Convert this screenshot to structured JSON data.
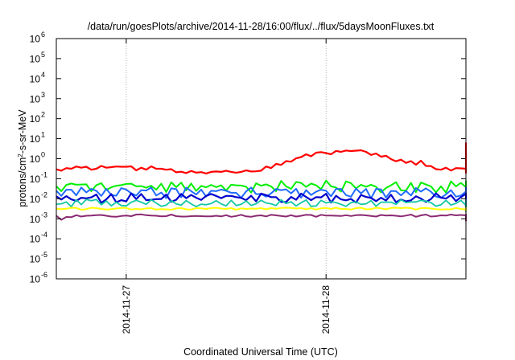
{
  "chart_data": {
    "type": "line",
    "title": "/data/run/goesPlots/archive/2014-11-28/16:00/flux/../flux/5daysMoonFluxes.txt",
    "xlabel": "Coordinated Universal Time (UTC)",
    "ylabel_parts": {
      "pre": "protons/cm",
      "sup": "2",
      "post": "-s-sr-MeV"
    },
    "scale_y": "log",
    "grid": true,
    "legend": "none",
    "ylim": [
      -6,
      6
    ],
    "y_ticks": [
      {
        "exp": -6,
        "base": "10",
        "power": "-6"
      },
      {
        "exp": -5,
        "base": "10",
        "power": "-5"
      },
      {
        "exp": -4,
        "base": "10",
        "power": "-4"
      },
      {
        "exp": -3,
        "base": "10",
        "power": "-3"
      },
      {
        "exp": -2,
        "base": "10",
        "power": "-2"
      },
      {
        "exp": -1,
        "base": "10",
        "power": "-1"
      },
      {
        "exp": 0,
        "base": "10",
        "power": "0"
      },
      {
        "exp": 1,
        "base": "10",
        "power": "1"
      },
      {
        "exp": 2,
        "base": "10",
        "power": "2"
      },
      {
        "exp": 3,
        "base": "10",
        "power": "3"
      },
      {
        "exp": 4,
        "base": "10",
        "power": "4"
      },
      {
        "exp": 5,
        "base": "10",
        "power": "5"
      },
      {
        "exp": 6,
        "base": "10",
        "power": "6"
      }
    ],
    "xlim": [
      -0.35,
      1.7
    ],
    "x_ticks": [
      {
        "value": 0,
        "label": "2014-11-27"
      },
      {
        "value": 1,
        "label": "2014-11-28"
      }
    ],
    "x_step": 0.025,
    "series": [
      {
        "color": "#ff0000",
        "stroke_width": 2.2,
        "log10_values": [
          -0.53,
          -0.6,
          -0.47,
          -0.5,
          -0.39,
          -0.45,
          -0.4,
          -0.55,
          -0.5,
          -0.36,
          -0.45,
          -0.42,
          -0.39,
          -0.4,
          -0.4,
          -0.38,
          -0.58,
          -0.45,
          -0.55,
          -0.38,
          -0.5,
          -0.5,
          -0.55,
          -0.52,
          -0.68,
          -0.65,
          -0.72,
          -0.61,
          -0.7,
          -0.67,
          -0.74,
          -0.66,
          -0.64,
          -0.66,
          -0.6,
          -0.66,
          -0.7,
          -0.66,
          -0.58,
          -0.64,
          -0.63,
          -0.6,
          -0.39,
          -0.47,
          -0.26,
          -0.31,
          -0.12,
          -0.15,
          0.02,
          0.08,
          0.22,
          0.12,
          0.3,
          0.33,
          0.28,
          0.22,
          0.39,
          0.34,
          0.41,
          0.38,
          0.4,
          0.42,
          0.34,
          0.19,
          0.26,
          0.1,
          0.15,
          -0.02,
          -0.13,
          -0.05,
          -0.21,
          -0.12,
          -0.3,
          -0.1,
          -0.36,
          -0.37,
          -0.52,
          -0.55,
          -0.45,
          -0.59,
          -0.47,
          -0.48,
          -0.5,
          -0.6,
          -0.46,
          -0.57,
          -0.56,
          -0.49,
          -0.51,
          -0.61,
          -0.64,
          -0.67,
          -0.52,
          -0.7,
          -0.63,
          -0.61,
          -0.55,
          -0.59,
          -0.5,
          -0.57,
          -0.49,
          -0.4,
          -0.48,
          -0.41,
          -0.4,
          -0.32,
          -0.38,
          -0.37,
          -0.22,
          -0.18,
          -0.24,
          -0.23,
          -0.06,
          -0.03,
          -0.05,
          -0.02,
          0.15,
          0.3,
          0.2,
          0.24,
          0.15,
          0.2,
          0.36,
          0.32,
          0.04,
          0.19,
          0.13,
          0.6,
          0.65,
          0.58,
          0.78,
          0.63,
          0.73,
          0.76,
          0.75
        ]
      },
      {
        "color": "#00ee00",
        "stroke_width": 2.0,
        "log10_values": [
          -1.38,
          -1.62,
          -1.31,
          -1.24,
          -1.3,
          -1.29,
          -1.28,
          -1.62,
          -1.32,
          -1.22,
          -1.56,
          -1.43,
          -1.35,
          -1.32,
          -1.26,
          -1.25,
          -1.38,
          -1.37,
          -1.45,
          -1.35,
          -1.55,
          -1.25,
          -1.66,
          -1.18,
          -1.42,
          -1.19,
          -1.58,
          -1.24,
          -1.61,
          -1.36,
          -1.43,
          -1.31,
          -1.42,
          -1.33,
          -1.59,
          -1.3,
          -1.33,
          -1.34,
          -1.4,
          -1.69,
          -1.23,
          -1.35,
          -1.28,
          -1.38,
          -1.62,
          -1.11,
          -1.38,
          -1.51,
          -1.16,
          -1.21,
          -1.41,
          -1.24,
          -1.33,
          -1.52,
          -1.09,
          -1.38,
          -1.44,
          -1.64,
          -1.13,
          -1.22,
          -1.48,
          -1.3,
          -1.4,
          -1.3,
          -1.4,
          -1.68,
          -1.46,
          -1.33,
          -1.17,
          -1.58,
          -1.59,
          -1.21,
          -1.67,
          -1.19,
          -1.29,
          -1.38,
          -1.68,
          -1.38,
          -1.69,
          -1.13,
          -1.38,
          -1.21,
          -1.42,
          -1.64,
          -1.29,
          -1.33,
          -1.2,
          -1.28,
          -1.56,
          -1.34,
          -1.42,
          -1.36,
          -1.3,
          -1.66,
          -1.31,
          -1.4,
          -1.34,
          -1.26,
          -1.23,
          -1.48,
          -1.51,
          -1.24,
          -1.65,
          -1.29,
          -1.46,
          -1.29,
          -1.3,
          -1.45,
          -1.18,
          -1.64,
          -1.15,
          -1.42,
          -1.55,
          -1.25,
          -1.21,
          -1.25,
          -1.64,
          -1.35,
          -1.49,
          -1.11,
          -1.44,
          -1.49,
          -1.32,
          -1.47,
          -1.32,
          -1.6,
          -2.1,
          -1.68,
          -1.27,
          -1.69,
          -1.4,
          -1.24,
          -1.36,
          -1.43,
          -1.28
        ]
      },
      {
        "color": "#1f6bff",
        "stroke_width": 2.0,
        "log10_values": [
          -1.6,
          -1.86,
          -1.55,
          -1.55,
          -1.83,
          -1.44,
          -1.68,
          -1.51,
          -1.6,
          -1.86,
          -1.51,
          -1.81,
          -1.85,
          -1.47,
          -1.54,
          -1.73,
          -1.84,
          -1.57,
          -1.59,
          -1.44,
          -1.84,
          -1.69,
          -1.97,
          -1.48,
          -1.52,
          -1.93,
          -1.44,
          -1.62,
          -1.79,
          -1.54,
          -1.89,
          -1.6,
          -1.62,
          -1.54,
          -1.6,
          -1.7,
          -1.7,
          -1.95,
          -1.63,
          -1.44,
          -1.77,
          -1.76,
          -1.9,
          -1.73,
          -1.51,
          -1.57,
          -1.53,
          -1.73,
          -1.5,
          -1.95,
          -1.57,
          -1.81,
          -1.65,
          -1.55,
          -1.6,
          -1.88,
          -1.51,
          -1.51,
          -1.82,
          -1.9,
          -1.49,
          -1.73,
          -1.51,
          -1.98,
          -1.51,
          -1.53,
          -1.94,
          -1.61,
          -1.62,
          -1.83,
          -1.61,
          -1.84,
          -1.46,
          -1.64,
          -1.48,
          -1.65,
          -1.89,
          -1.95,
          -1.78,
          -1.57,
          -1.9,
          -1.84,
          -1.64,
          -1.61,
          -1.74,
          -1.83,
          -1.71,
          -1.86,
          -1.74,
          -1.61,
          -1.77,
          -1.53,
          -1.81,
          -1.52,
          -1.66,
          -1.59,
          -1.78,
          -1.51,
          -1.89,
          -1.58,
          -1.79,
          -1.87,
          -1.69,
          -1.5,
          -1.81,
          -1.78,
          -1.86,
          -1.83,
          -1.42,
          -1.64,
          -1.59,
          -1.47,
          -1.76,
          -1.71,
          -1.64,
          -1.56,
          -1.91,
          -1.74,
          -1.87,
          -1.5,
          -1.6,
          -1.61,
          -1.66,
          -1.52,
          -1.64,
          -1.89,
          -2.6,
          -1.74,
          -1.84,
          -1.55,
          -1.64,
          -1.58,
          -1.62,
          -1.61,
          -1.65
        ]
      },
      {
        "color": "#0000cc",
        "stroke_width": 2.2,
        "log10_values": [
          -1.88,
          -2.04,
          -1.87,
          -2.03,
          -2.11,
          -1.95,
          -1.98,
          -1.93,
          -1.79,
          -2.2,
          -2.03,
          -1.77,
          -2.18,
          -2.07,
          -2.13,
          -1.73,
          -2.02,
          -1.76,
          -2.07,
          -2.05,
          -2.02,
          -2.01,
          -1.79,
          -2.15,
          -2.05,
          -1.76,
          -1.97,
          -1.81,
          -1.95,
          -2.06,
          -1.86,
          -1.76,
          -1.86,
          -1.97,
          -1.86,
          -1.86,
          -1.92,
          -1.96,
          -2.07,
          -1.85,
          -2.13,
          -1.74,
          -1.82,
          -1.92,
          -1.92,
          -2.16,
          -2.16,
          -1.91,
          -2.05,
          -1.74,
          -1.91,
          -2.07,
          -1.92,
          -1.93,
          -1.75,
          -2.19,
          -1.85,
          -2.03,
          -2.08,
          -2.01,
          -2.19,
          -1.81,
          -1.91,
          -1.96,
          -2.12,
          -1.95,
          -2.09,
          -1.8,
          -2.17,
          -2.04,
          -2.13,
          -2.08,
          -1.88,
          -1.99,
          -2.16,
          -2.02,
          -1.73,
          -1.95,
          -1.99,
          -1.82,
          -2.12,
          -1.92,
          -1.75,
          -1.81,
          -2.04,
          -1.88,
          -2.13,
          -1.88,
          -2.11,
          -1.85,
          -2.02,
          -1.76,
          -1.91,
          -1.82,
          -1.92,
          -1.73,
          -1.89,
          -2.15,
          -2.03,
          -2.13,
          -2.08,
          -2.19,
          -2.11,
          -1.83,
          -2.08,
          -1.91,
          -2.04,
          -2.19,
          -1.98,
          -2.03,
          -2.04,
          -1.94,
          -1.82,
          -1.79,
          -2.12,
          -2.19,
          -1.97,
          -2.0,
          -1.76,
          -1.94,
          -2.15,
          -1.86,
          -2.05,
          -1.85,
          -1.93,
          -1.99,
          -2.5,
          -2.02,
          -1.95,
          -1.82,
          -1.75,
          -1.87,
          -1.76,
          -1.77,
          -1.81
        ]
      },
      {
        "color": "#14c8a4",
        "stroke_width": 1.8,
        "log10_values": [
          -2.27,
          -2.25,
          -2.16,
          -2.39,
          -2.05,
          -2.29,
          -2.04,
          -2.1,
          -2.04,
          -2.3,
          -2.11,
          -2.35,
          -2.17,
          -2.34,
          -2.36,
          -2.17,
          -2.08,
          -2.17,
          -2.28,
          -2.05,
          -2.21,
          -2.38,
          -2.32,
          -2.1,
          -2.26,
          -2.32,
          -2.09,
          -2.26,
          -2.39,
          -2.27,
          -2.3,
          -2.24,
          -2.1,
          -2.26,
          -2.35,
          -2.08,
          -2.34,
          -2.28,
          -2.11,
          -2.33,
          -2.25,
          -2.08,
          -2.21,
          -2.25,
          -2.34,
          -2.05,
          -2.24,
          -2.15,
          -2.36,
          -2.2,
          -2.06,
          -2.38,
          -2.36,
          -2.08,
          -2.21,
          -2.15,
          -2.19,
          -2.28,
          -2.38,
          -2.19,
          -2.16,
          -2.28,
          -2.25,
          -2.09,
          -2.37,
          -2.17,
          -2.17,
          -2.17,
          -2.28,
          -2.05,
          -2.19,
          -2.16,
          -2.16,
          -2.08,
          -2.12,
          -2.19,
          -2.37,
          -2.3,
          -2.08,
          -2.31,
          -2.23,
          -2.08,
          -2.33,
          -2.18,
          -2.11,
          -2.15,
          -2.07,
          -2.26,
          -2.18,
          -2.36,
          -2.21,
          -2.15,
          -2.37,
          -2.3,
          -2.06,
          -2.05,
          -2.18,
          -2.18,
          -2.27,
          -2.29,
          -2.33,
          -2.23,
          -2.31,
          -2.38,
          -2.17,
          -2.14,
          -2.04,
          -2.19,
          -2.11,
          -2.32,
          -2.37,
          -2.09,
          -2.3,
          -2.16,
          -2.07,
          -2.26,
          -2.13,
          -2.19,
          -2.07,
          -2.2,
          -2.36,
          -2.31,
          -2.21,
          -2.21,
          -2.15,
          -2.29,
          -2.66,
          -2.27,
          -2.36,
          -2.09,
          -2.05,
          -2.23,
          -2.16,
          -2.17,
          -2.27
        ]
      },
      {
        "color": "#ffff00",
        "stroke_width": 2.0,
        "log10_values": [
          -2.5,
          -2.52,
          -2.5,
          -2.45,
          -2.46,
          -2.55,
          -2.52,
          -2.45,
          -2.47,
          -2.51,
          -2.54,
          -2.52,
          -2.49,
          -2.46,
          -2.46,
          -2.54,
          -2.51,
          -2.53,
          -2.48,
          -2.47,
          -2.54,
          -2.52,
          -2.53,
          -2.55,
          -2.48,
          -2.47,
          -2.53,
          -2.54,
          -2.47,
          -2.48,
          -2.51,
          -2.47,
          -2.45,
          -2.49,
          -2.51,
          -2.47,
          -2.55,
          -2.48,
          -2.51,
          -2.49,
          -2.5,
          -2.47,
          -2.53,
          -2.47,
          -2.5,
          -2.46,
          -2.45,
          -2.46,
          -2.49,
          -2.47,
          -2.53,
          -2.47,
          -2.54,
          -2.48,
          -2.46,
          -2.51,
          -2.45,
          -2.51,
          -2.51,
          -2.54,
          -2.47,
          -2.45,
          -2.53,
          -2.52,
          -2.45,
          -2.48,
          -2.53,
          -2.46,
          -2.45,
          -2.47,
          -2.45,
          -2.47,
          -2.54,
          -2.47,
          -2.46,
          -2.49,
          -2.52,
          -2.54,
          -2.53,
          -2.53,
          -2.46,
          -2.51,
          -2.54,
          -2.49,
          -2.45,
          -2.47,
          -2.47,
          -2.46,
          -2.55,
          -2.48,
          -2.49,
          -2.49,
          -2.52,
          -2.46,
          -2.52,
          -2.47,
          -2.51,
          -2.55,
          -2.46,
          -2.49,
          -2.52,
          -2.54,
          -2.54,
          -2.5,
          -2.51,
          -2.48,
          -2.49,
          -2.45,
          -2.51,
          -2.49,
          -2.53,
          -2.46,
          -2.51,
          -2.5,
          -2.55,
          -2.51,
          -2.48,
          -2.52,
          -2.49,
          -2.48,
          -2.53,
          -2.48,
          -2.52,
          -2.45,
          -2.5,
          -2.54,
          -2.6,
          -2.51,
          -2.55,
          -2.48,
          -2.48,
          -2.46,
          -2.54,
          -2.53,
          -2.48
        ]
      },
      {
        "color": "#8b2a72",
        "stroke_width": 2.0,
        "log10_values": [
          -2.85,
          -3.05,
          -2.91,
          -2.92,
          -2.82,
          -2.89,
          -2.85,
          -2.84,
          -2.82,
          -2.81,
          -2.85,
          -2.89,
          -2.9,
          -2.86,
          -2.84,
          -2.87,
          -2.79,
          -2.78,
          -2.82,
          -2.84,
          -2.85,
          -2.88,
          -2.87,
          -2.79,
          -2.87,
          -2.89,
          -2.89,
          -2.87,
          -2.86,
          -2.87,
          -2.88,
          -2.88,
          -2.85,
          -2.88,
          -2.82,
          -2.9,
          -2.86,
          -2.8,
          -2.88,
          -2.9,
          -2.85,
          -2.83,
          -2.88,
          -2.8,
          -2.83,
          -2.86,
          -2.89,
          -2.82,
          -2.89,
          -2.85,
          -2.8,
          -2.81,
          -2.9,
          -2.8,
          -2.84,
          -2.84,
          -2.85,
          -2.86,
          -2.82,
          -2.86,
          -2.82,
          -2.81,
          -2.83,
          -2.86,
          -2.89,
          -2.81,
          -2.84,
          -2.83,
          -2.85,
          -2.88,
          -2.84,
          -2.79,
          -2.9,
          -2.83,
          -2.79,
          -2.89,
          -2.87,
          -2.83,
          -2.84,
          -2.79,
          -2.83,
          -2.81,
          -2.83,
          -2.81,
          -2.78,
          -2.83,
          -2.83,
          -2.8,
          -2.81,
          -2.89,
          -2.86,
          -2.86,
          -2.88,
          -2.79,
          -2.86,
          -2.83,
          -2.78,
          -2.89,
          -2.84,
          -2.87,
          -2.86,
          -2.82,
          -2.89,
          -2.86,
          -2.79,
          -2.82,
          -2.82,
          -2.86,
          -2.8,
          -2.81,
          -2.8,
          -2.83,
          -2.83,
          -2.8,
          -2.84,
          -2.84,
          -2.79,
          -2.8,
          -2.81,
          -2.88,
          -2.82,
          -2.8,
          -2.82,
          -2.87,
          -2.8,
          -2.87,
          -3.1,
          -3.05,
          -2.8,
          -2.84,
          -2.88,
          -2.81,
          -2.88,
          -2.86,
          -2.83
        ]
      }
    ]
  }
}
